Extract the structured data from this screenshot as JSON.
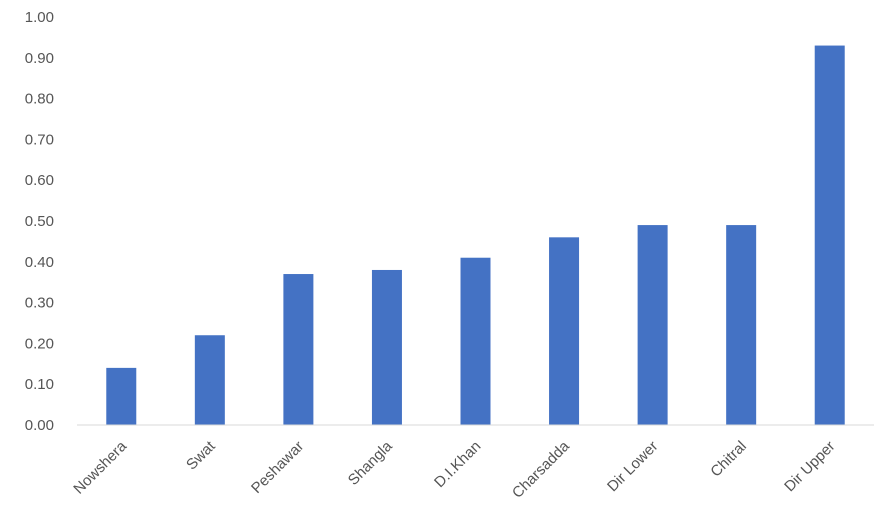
{
  "chart_data": {
    "type": "bar",
    "categories": [
      "Nowshera",
      "Swat",
      "Peshawar",
      "Shangla",
      "D.I.Khan",
      "Charsadda",
      "Dir Lower",
      "Chitral",
      "Dir Upper"
    ],
    "values": [
      0.14,
      0.22,
      0.37,
      0.38,
      0.41,
      0.46,
      0.49,
      0.49,
      0.93
    ],
    "ylim": [
      0,
      1.0
    ],
    "yticks": [
      "0.00",
      "0.10",
      "0.20",
      "0.30",
      "0.40",
      "0.50",
      "0.60",
      "0.70",
      "0.80",
      "0.90",
      "1.00"
    ],
    "grid": false,
    "bar_color": "#4472C4",
    "axis_color": "#d9d9d9",
    "title": "",
    "xlabel": "",
    "ylabel": ""
  }
}
